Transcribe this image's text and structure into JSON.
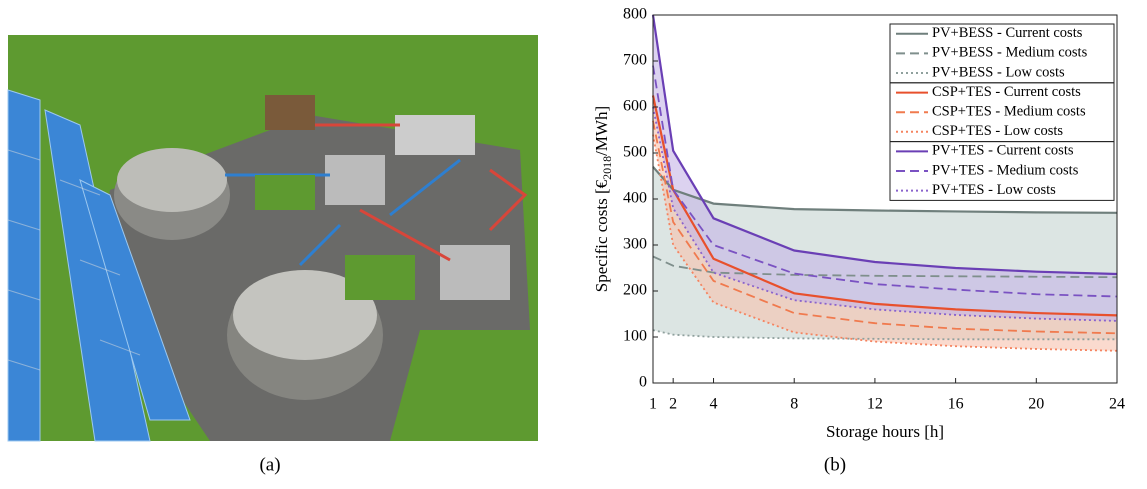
{
  "captions": [
    "(a)",
    "(b)"
  ],
  "chart_data": {
    "type": "line",
    "xlabel": "Storage hours [h]",
    "ylabel": [
      "Specific costs [€",
      "2018",
      "/MWh]"
    ],
    "x": [
      1,
      2,
      4,
      8,
      12,
      16,
      20,
      24
    ],
    "xlim": [
      1,
      24
    ],
    "xticks": [
      1,
      2,
      4,
      8,
      12,
      16,
      20,
      24
    ],
    "ylim": [
      0,
      800
    ],
    "yticks": [
      0,
      100,
      200,
      300,
      400,
      500,
      600,
      700,
      800
    ],
    "legend": "upper right",
    "series": [
      {
        "name": "PV+BESS - Current costs",
        "color": "#6f7f7c",
        "dash": "solid",
        "fill_to": "PV+BESS - Low costs",
        "fill_color": "#c5d3d1",
        "values": [
          470,
          420,
          390,
          378,
          375,
          373,
          371,
          370
        ]
      },
      {
        "name": "PV+BESS - Medium costs",
        "color": "#7f8f8c",
        "dash": "dashed",
        "values": [
          275,
          255,
          240,
          235,
          233,
          232,
          231,
          230
        ]
      },
      {
        "name": "PV+BESS - Low costs",
        "color": "#8fa09d",
        "dash": "dotted",
        "values": [
          115,
          105,
          100,
          97,
          96,
          95,
          95,
          95
        ]
      },
      {
        "name": "CSP+TES - Current costs",
        "color": "#e8502c",
        "dash": "solid",
        "fill_to": "CSP+TES - Low costs",
        "fill_color": "#f7c2ad",
        "values": [
          625,
          420,
          270,
          195,
          172,
          160,
          152,
          147
        ]
      },
      {
        "name": "CSP+TES - Medium costs",
        "color": "#f07a4e",
        "dash": "dashed",
        "values": [
          570,
          350,
          222,
          152,
          130,
          118,
          112,
          108
        ]
      },
      {
        "name": "CSP+TES - Low costs",
        "color": "#f5835f",
        "dash": "dotted",
        "values": [
          540,
          300,
          175,
          110,
          90,
          80,
          74,
          70
        ]
      },
      {
        "name": "PV+TES - Current costs",
        "color": "#6a3fb5",
        "dash": "solid",
        "fill_to": "PV+TES - Low costs",
        "fill_color": "#c4b4e6",
        "values": [
          800,
          505,
          358,
          288,
          263,
          250,
          242,
          237
        ]
      },
      {
        "name": "PV+TES - Medium costs",
        "color": "#7a52c2",
        "dash": "dashed",
        "values": [
          690,
          420,
          300,
          238,
          215,
          203,
          193,
          188
        ]
      },
      {
        "name": "PV+TES - Low costs",
        "color": "#8a63cc",
        "dash": "dotted",
        "values": [
          600,
          380,
          240,
          180,
          160,
          148,
          140,
          135
        ]
      }
    ]
  }
}
